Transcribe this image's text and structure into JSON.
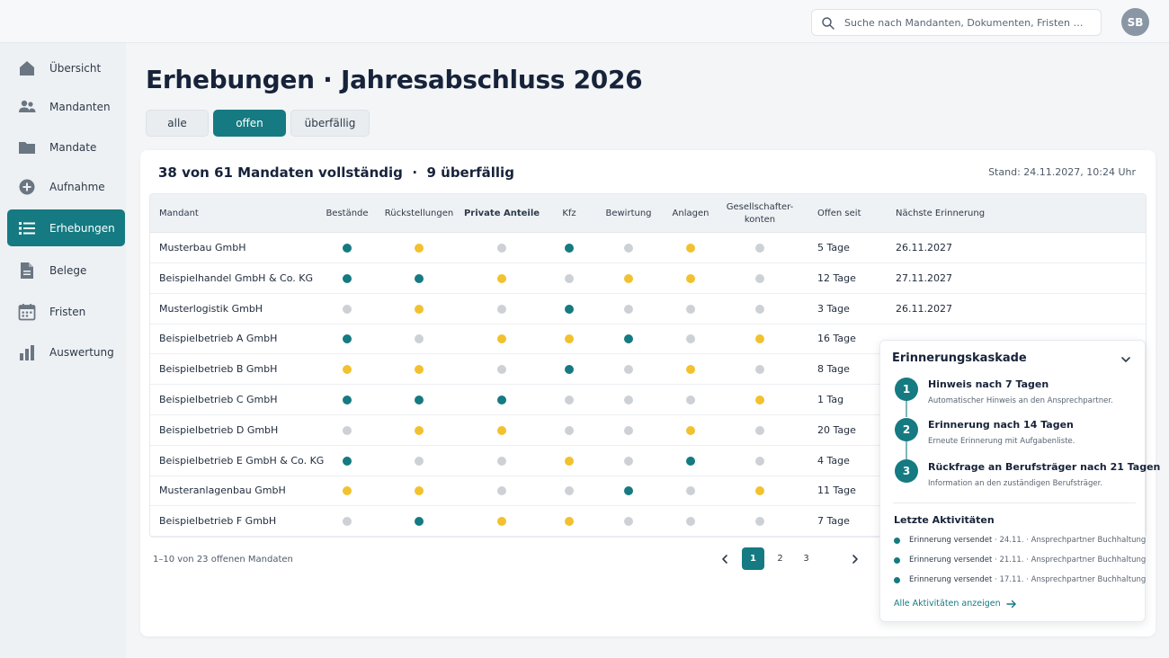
{
  "search": {
    "placeholder": "Suche nach Mandanten, Dokumenten, Fristen …"
  },
  "user": {
    "initials": "SB"
  },
  "sidebar": {
    "items": [
      {
        "label": "Übersicht",
        "icon": "home-icon",
        "active": false
      },
      {
        "label": "Mandanten",
        "icon": "people-icon",
        "active": false
      },
      {
        "label": "Mandate",
        "icon": "folder-icon",
        "active": false
      },
      {
        "label": "Aufnahme",
        "icon": "plus-circle-icon",
        "active": false
      },
      {
        "label": "Erhebungen",
        "icon": "list-icon",
        "active": true
      },
      {
        "label": "Belege",
        "icon": "document-icon",
        "active": false
      },
      {
        "label": "Fristen",
        "icon": "calendar-icon",
        "active": false
      },
      {
        "label": "Auswertung",
        "icon": "bar-chart-icon",
        "active": false
      }
    ]
  },
  "page": {
    "title": "Erhebungen · Jahresabschluss 2026"
  },
  "filters": [
    {
      "label": "alle",
      "active": false
    },
    {
      "label": "offen",
      "active": true
    },
    {
      "label": "überfällig",
      "active": false
    }
  ],
  "summary": {
    "text": "38 von 61 Mandaten vollständig  ·  9 überfällig",
    "stand": "Stand: 24.11.2027, 10:24 Uhr"
  },
  "table": {
    "headers": {
      "mandant": "Mandant",
      "cols": [
        "Bestände",
        "Rückstellungen",
        "Private Anteile",
        "Kfz",
        "Bewirtung",
        "Anlagen",
        "Gesellschafter-\nkonten"
      ],
      "offen": "Offen seit",
      "erinnerung": "Nächste Erinnerung"
    },
    "status_colors": {
      "ok": "#157a81",
      "pending": "#f2c12e",
      "none": "#cdd1d5"
    },
    "rows": [
      {
        "name": "Musterbau GmbH",
        "status": [
          "ok",
          "pending",
          "none",
          "ok",
          "none",
          "pending",
          "none"
        ],
        "offen": "5 Tage",
        "next": "26.11.2027"
      },
      {
        "name": "Beispielhandel GmbH & Co. KG",
        "status": [
          "ok",
          "ok",
          "pending",
          "none",
          "pending",
          "pending",
          "none"
        ],
        "offen": "12 Tage",
        "next": "27.11.2027"
      },
      {
        "name": "Musterlogistik GmbH",
        "status": [
          "none",
          "pending",
          "none",
          "ok",
          "none",
          "none",
          "none"
        ],
        "offen": "3 Tage",
        "next": "26.11.2027"
      },
      {
        "name": "Beispielbetrieb A GmbH",
        "status": [
          "ok",
          "none",
          "pending",
          "pending",
          "ok",
          "none",
          "pending"
        ],
        "offen": "16 Tage",
        "next": ""
      },
      {
        "name": "Beispielbetrieb B GmbH",
        "status": [
          "pending",
          "pending",
          "none",
          "ok",
          "none",
          "pending",
          "none"
        ],
        "offen": "8 Tage",
        "next": ""
      },
      {
        "name": "Beispielbetrieb C GmbH",
        "status": [
          "ok",
          "ok",
          "ok",
          "none",
          "none",
          "none",
          "pending"
        ],
        "offen": "1 Tag",
        "next": ""
      },
      {
        "name": "Beispielbetrieb D GmbH",
        "status": [
          "none",
          "pending",
          "pending",
          "none",
          "none",
          "pending",
          "none"
        ],
        "offen": "20 Tage",
        "next": ""
      },
      {
        "name": "Beispielbetrieb E GmbH & Co. KG",
        "status": [
          "ok",
          "none",
          "none",
          "pending",
          "none",
          "ok",
          "none"
        ],
        "offen": "4 Tage",
        "next": ""
      },
      {
        "name": "Musteranlagenbau GmbH",
        "status": [
          "pending",
          "pending",
          "none",
          "none",
          "ok",
          "none",
          "pending"
        ],
        "offen": "11 Tage",
        "next": ""
      },
      {
        "name": "Beispielbetrieb F GmbH",
        "status": [
          "none",
          "ok",
          "pending",
          "pending",
          "none",
          "none",
          "none"
        ],
        "offen": "7 Tage",
        "next": ""
      }
    ]
  },
  "footer": {
    "range": "1–10 von 23 offenen Mandaten"
  },
  "pagination": {
    "pages": [
      "1",
      "2",
      "3"
    ],
    "current": "1"
  },
  "cascade": {
    "title": "Erinnerungskaskade",
    "steps": [
      {
        "num": "1",
        "title": "Hinweis nach 7 Tagen",
        "desc": "Automatischer Hinweis an den Ansprechpartner."
      },
      {
        "num": "2",
        "title": "Erinnerung nach 14 Tagen",
        "desc": "Erneute Erinnerung mit Aufgabenliste."
      },
      {
        "num": "3",
        "title": "Rückfrage an Berufsträger nach 21 Tagen",
        "desc": "Information an den zuständigen Berufsträger."
      }
    ],
    "activities_title": "Letzte Aktivitäten",
    "activities": [
      {
        "action": "Erinnerung versendet",
        "date": "24.11.",
        "target": "Ansprechpartner Buchhaltung"
      },
      {
        "action": "Erinnerung versendet",
        "date": "21.11.",
        "target": "Ansprechpartner Buchhaltung"
      },
      {
        "action": "Erinnerung versendet",
        "date": "17.11.",
        "target": "Ansprechpartner Buchhaltung"
      }
    ],
    "link": "Alle Aktivitäten anzeigen"
  }
}
